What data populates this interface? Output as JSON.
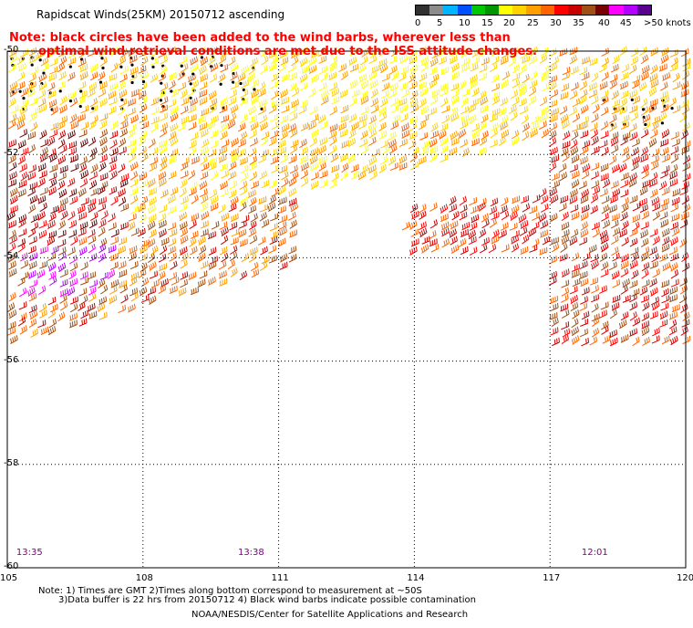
{
  "header": {
    "title": "Rapidscat Winds(25KM) 20150712 ascending",
    "note_line1": "Note: black circles have been added to the wind barbs, wherever less than",
    "note_line2": "optimal wind retrieval conditions are met due to the ISS attitude changes."
  },
  "legend": {
    "labels": [
      "0",
      "5",
      "10",
      "15",
      "20",
      "25",
      "30",
      "35",
      "40",
      "45",
      ">50 knots"
    ],
    "colors": [
      "#303030",
      "#8c8c8c",
      "#00b4ff",
      "#0050ff",
      "#00c800",
      "#009600",
      "#ffff00",
      "#ffd200",
      "#ffa000",
      "#ff6400",
      "#ff0000",
      "#c80000",
      "#a05014",
      "#780000",
      "#ff00ff",
      "#b400ff",
      "#5a0090"
    ]
  },
  "map": {
    "latitudes": [
      "-50",
      "-52",
      "-54",
      "-56",
      "-58",
      "-60"
    ],
    "longitudes": [
      "105",
      "108",
      "111",
      "114",
      "117",
      "120"
    ],
    "times": [
      {
        "label": "13:35",
        "lon": 105.2
      },
      {
        "label": "13:38",
        "lon": 110.1
      },
      {
        "label": "12:01",
        "lon": 117.7
      }
    ]
  },
  "footer": {
    "line1": "Note: 1) Times are GMT 2)Times along bottom correspond to measurement at ~50S",
    "line2": "3)Data buffer is 22 hrs from 20150712 4) Black wind barbs indicate possible contamination",
    "credit": "NOAA/NESDIS/Center for Satellite Applications and Research"
  }
}
